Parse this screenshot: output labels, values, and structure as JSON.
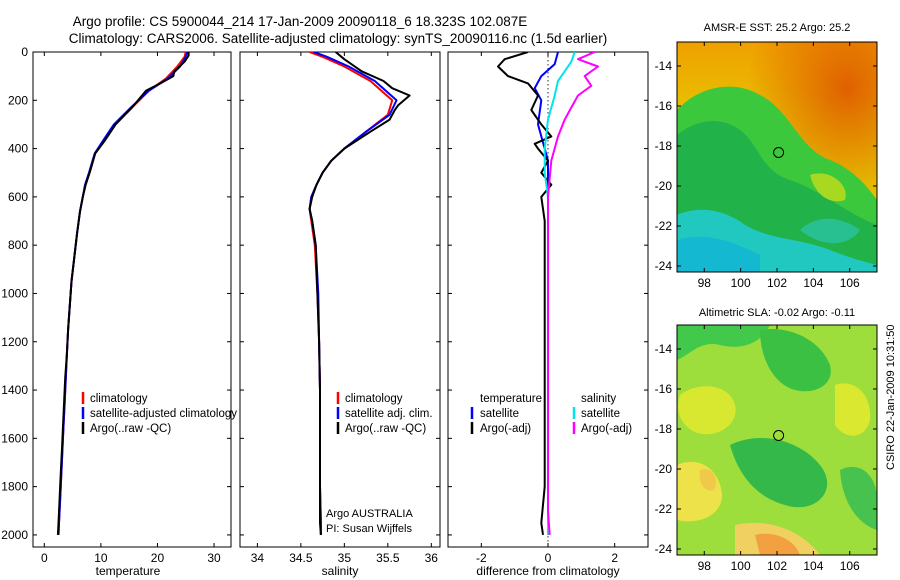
{
  "figure": {
    "title_line1": "Argo profile: CS 5900044_214 17-Jan-2009 20090118_6 18.323S 102.087E",
    "title_line2": "Climatology: CARS2006. Satellite-adjusted climatology: synTS_20090116.nc (1.5d earlier)",
    "footer_credit": "CSIRO 22-Jan-2009 10:31:50",
    "argo_text_line1": "Argo AUSTRALIA",
    "argo_text_line2": "PI: Susan Wijffels"
  },
  "colors": {
    "climatology": "#ff0000",
    "satellite": "#0000ff",
    "argo": "#000000",
    "satellite_salinity_diff": "#00e5ee",
    "argo_salinity_diff": "#ff00ff"
  },
  "chart_data": [
    {
      "id": "temperature",
      "type": "line",
      "xlabel": "temperature",
      "ylabel": "",
      "xlim": [
        -2,
        33
      ],
      "ylim": [
        0,
        2050
      ],
      "y_inverted": true,
      "xticks": [
        0,
        10,
        20,
        30
      ],
      "yticks": [
        0,
        200,
        400,
        600,
        800,
        1000,
        1200,
        1400,
        1600,
        1800,
        2000
      ],
      "legend": [
        "climatology",
        "satellite-adjusted climatology",
        "Argo(..raw -QC)"
      ],
      "series": [
        {
          "name": "climatology",
          "color": "#ff0000",
          "x": [
            25.0,
            24.8,
            23.5,
            21.5,
            18.5,
            15.5,
            12.5,
            10.5,
            9.0,
            8.0,
            7.3,
            6.8,
            6.3,
            5.8,
            5.3,
            4.8,
            4.5,
            4.2,
            4.0,
            3.8,
            3.6,
            3.4,
            3.2,
            3.0,
            2.8,
            2.6,
            2.5
          ],
          "y": [
            0,
            20,
            60,
            110,
            160,
            230,
            300,
            370,
            420,
            500,
            550,
            600,
            660,
            750,
            850,
            950,
            1050,
            1150,
            1250,
            1350,
            1450,
            1550,
            1650,
            1750,
            1850,
            1950,
            2000
          ]
        },
        {
          "name": "satellite-adjusted climatology",
          "color": "#0000ff",
          "x": [
            25.3,
            25.0,
            24.0,
            21.8,
            18.5,
            15.3,
            12.3,
            10.3,
            8.9,
            7.9,
            7.2,
            6.8,
            6.3,
            5.8,
            5.3,
            4.8,
            4.5,
            4.2,
            4.0,
            3.8,
            3.6,
            3.4,
            3.2,
            3.0,
            2.8,
            2.6,
            2.5
          ],
          "y": [
            0,
            20,
            60,
            110,
            160,
            230,
            300,
            370,
            420,
            500,
            550,
            600,
            660,
            750,
            850,
            950,
            1050,
            1150,
            1250,
            1350,
            1450,
            1550,
            1650,
            1750,
            1850,
            1950,
            2000
          ]
        },
        {
          "name": "Argo(..raw -QC)",
          "color": "#000000",
          "x": [
            25.5,
            25.5,
            24.8,
            23.0,
            22.8,
            20.5,
            18.0,
            15.5,
            12.6,
            10.6,
            9.0,
            8.0,
            7.3,
            6.8,
            6.3,
            5.8,
            5.3,
            4.8,
            4.5,
            4.2,
            4.0,
            3.7,
            3.5,
            3.3,
            3.1,
            2.9,
            2.7,
            2.5,
            2.4
          ],
          "y": [
            0,
            15,
            40,
            80,
            100,
            130,
            160,
            230,
            300,
            370,
            420,
            500,
            550,
            600,
            660,
            750,
            850,
            950,
            1050,
            1150,
            1250,
            1350,
            1450,
            1550,
            1650,
            1750,
            1850,
            1950,
            2000
          ]
        }
      ]
    },
    {
      "id": "salinity",
      "type": "line",
      "xlabel": "salinity",
      "ylabel": "",
      "xlim": [
        33.8,
        36.1
      ],
      "ylim": [
        0,
        2050
      ],
      "y_inverted": true,
      "xticks": [
        34,
        34.5,
        35,
        35.5,
        36
      ],
      "yticks": [
        0,
        200,
        400,
        600,
        800,
        1000,
        1200,
        1400,
        1600,
        1800,
        2000
      ],
      "legend": [
        "climatology",
        "satellite adj. clim.",
        "Argo(..raw -QC)"
      ],
      "series": [
        {
          "name": "climatology",
          "color": "#ff0000",
          "x": [
            34.6,
            34.75,
            35.0,
            35.3,
            35.55,
            35.5,
            35.25,
            35.0,
            34.85,
            34.75,
            34.68,
            34.62,
            34.6,
            34.62,
            34.66,
            34.69,
            34.71,
            34.72,
            34.72,
            34.72,
            34.73,
            34.73
          ],
          "y": [
            0,
            20,
            60,
            120,
            200,
            260,
            330,
            400,
            450,
            500,
            550,
            600,
            650,
            700,
            800,
            1000,
            1200,
            1400,
            1600,
            1800,
            1950,
            2000
          ]
        },
        {
          "name": "satellite adj. clim.",
          "color": "#0000ff",
          "x": [
            34.65,
            34.8,
            35.05,
            35.35,
            35.6,
            35.52,
            35.25,
            35.0,
            34.85,
            34.75,
            34.68,
            34.62,
            34.6,
            34.63,
            34.67,
            34.7,
            34.71,
            34.72,
            34.72,
            34.72,
            34.73,
            34.73
          ],
          "y": [
            0,
            20,
            60,
            120,
            200,
            260,
            330,
            400,
            450,
            500,
            550,
            600,
            650,
            700,
            800,
            1000,
            1200,
            1400,
            1600,
            1800,
            1950,
            2000
          ]
        },
        {
          "name": "Argo(..raw -QC)",
          "color": "#000000",
          "x": [
            34.9,
            35.0,
            35.2,
            35.45,
            35.55,
            35.75,
            35.62,
            35.58,
            35.52,
            35.3,
            35.0,
            34.85,
            34.75,
            34.68,
            34.63,
            34.6,
            34.63,
            34.67,
            34.69,
            34.71,
            34.72,
            34.72,
            34.72,
            34.72,
            34.73
          ],
          "y": [
            0,
            30,
            80,
            120,
            150,
            180,
            220,
            240,
            280,
            330,
            400,
            450,
            500,
            550,
            600,
            650,
            700,
            800,
            1000,
            1200,
            1400,
            1600,
            1800,
            1950,
            2000
          ]
        }
      ]
    },
    {
      "id": "difference",
      "type": "line",
      "xlabel": "difference from climatology",
      "ylabel": "",
      "xlim": [
        -3,
        3
      ],
      "ylim": [
        0,
        2050
      ],
      "y_inverted": true,
      "xticks": [
        -2,
        0,
        2
      ],
      "yticks": [
        0,
        200,
        400,
        600,
        800,
        1000,
        1200,
        1400,
        1600,
        1800,
        2000
      ],
      "legend_temperature_header": "temperature",
      "legend_salinity_header": "salinity",
      "legend": [
        "satellite",
        "Argo(-adj)",
        "satellite",
        "Argo(-adj)"
      ],
      "series": [
        {
          "name": "temperature satellite",
          "color": "#0000ff",
          "x": [
            0.3,
            0.2,
            -0.2,
            -0.4,
            -0.2,
            -0.3,
            -0.1,
            0.0,
            0.0,
            0.0,
            0.0,
            0.0,
            0.0,
            0.0,
            0.0,
            0.0
          ],
          "y": [
            0,
            50,
            100,
            150,
            200,
            300,
            400,
            450,
            500,
            700,
            900,
            1200,
            1500,
            1800,
            1950,
            2000
          ]
        },
        {
          "name": "temperature Argo(-adj)",
          "color": "#000000",
          "x": [
            -0.6,
            -1.3,
            -1.5,
            -1.2,
            -0.6,
            -0.3,
            -0.5,
            -0.2,
            0.1,
            -0.4,
            -0.3,
            0.0,
            -0.2,
            0.1,
            -0.2,
            -0.1,
            -0.1,
            -0.1,
            -0.1,
            -0.1,
            -0.2,
            -0.15
          ],
          "y": [
            0,
            30,
            60,
            100,
            130,
            180,
            240,
            300,
            350,
            380,
            400,
            450,
            500,
            550,
            600,
            700,
            900,
            1200,
            1500,
            1800,
            1950,
            2000
          ]
        },
        {
          "name": "salinity satellite",
          "color": "#00e5ee",
          "x": [
            0.8,
            0.7,
            0.5,
            0.3,
            0.2,
            0.0,
            -0.1,
            -0.1,
            0.0,
            0.0,
            0.0,
            0.0,
            0.0,
            0.0,
            0.0
          ],
          "y": [
            0,
            40,
            80,
            120,
            180,
            280,
            400,
            500,
            600,
            800,
            1000,
            1300,
            1600,
            1900,
            2000
          ]
        },
        {
          "name": "salinity Argo(-adj)",
          "color": "#ff00ff",
          "x": [
            1.4,
            0.9,
            1.5,
            1.1,
            1.3,
            0.9,
            0.7,
            0.5,
            0.3,
            0.1,
            0.0,
            0.0,
            0.0,
            0.0,
            0.0,
            0.05
          ],
          "y": [
            0,
            30,
            60,
            100,
            140,
            180,
            230,
            280,
            350,
            450,
            600,
            800,
            1100,
            1500,
            1900,
            2000
          ]
        }
      ]
    },
    {
      "id": "sst_map",
      "type": "heatmap",
      "title": "AMSR-E SST: 25.2  Argo: 25.2",
      "xlim": [
        96.5,
        107.5
      ],
      "ylim": [
        -24.3,
        -12.8
      ],
      "xticks": [
        98,
        100,
        102,
        104,
        106
      ],
      "yticks": [
        -14,
        -16,
        -18,
        -20,
        -22,
        -24
      ],
      "marker": {
        "lon": 102.087,
        "lat": -18.323
      }
    },
    {
      "id": "sla_map",
      "type": "heatmap",
      "title": "Altimetric SLA: -0.02  Argo: -0.11",
      "xlim": [
        96.5,
        107.5
      ],
      "ylim": [
        -24.3,
        -12.8
      ],
      "xticks": [
        98,
        100,
        102,
        104,
        106
      ],
      "yticks": [
        -14,
        -16,
        -18,
        -20,
        -22,
        -24
      ],
      "marker": {
        "lon": 102.087,
        "lat": -18.323
      }
    }
  ]
}
